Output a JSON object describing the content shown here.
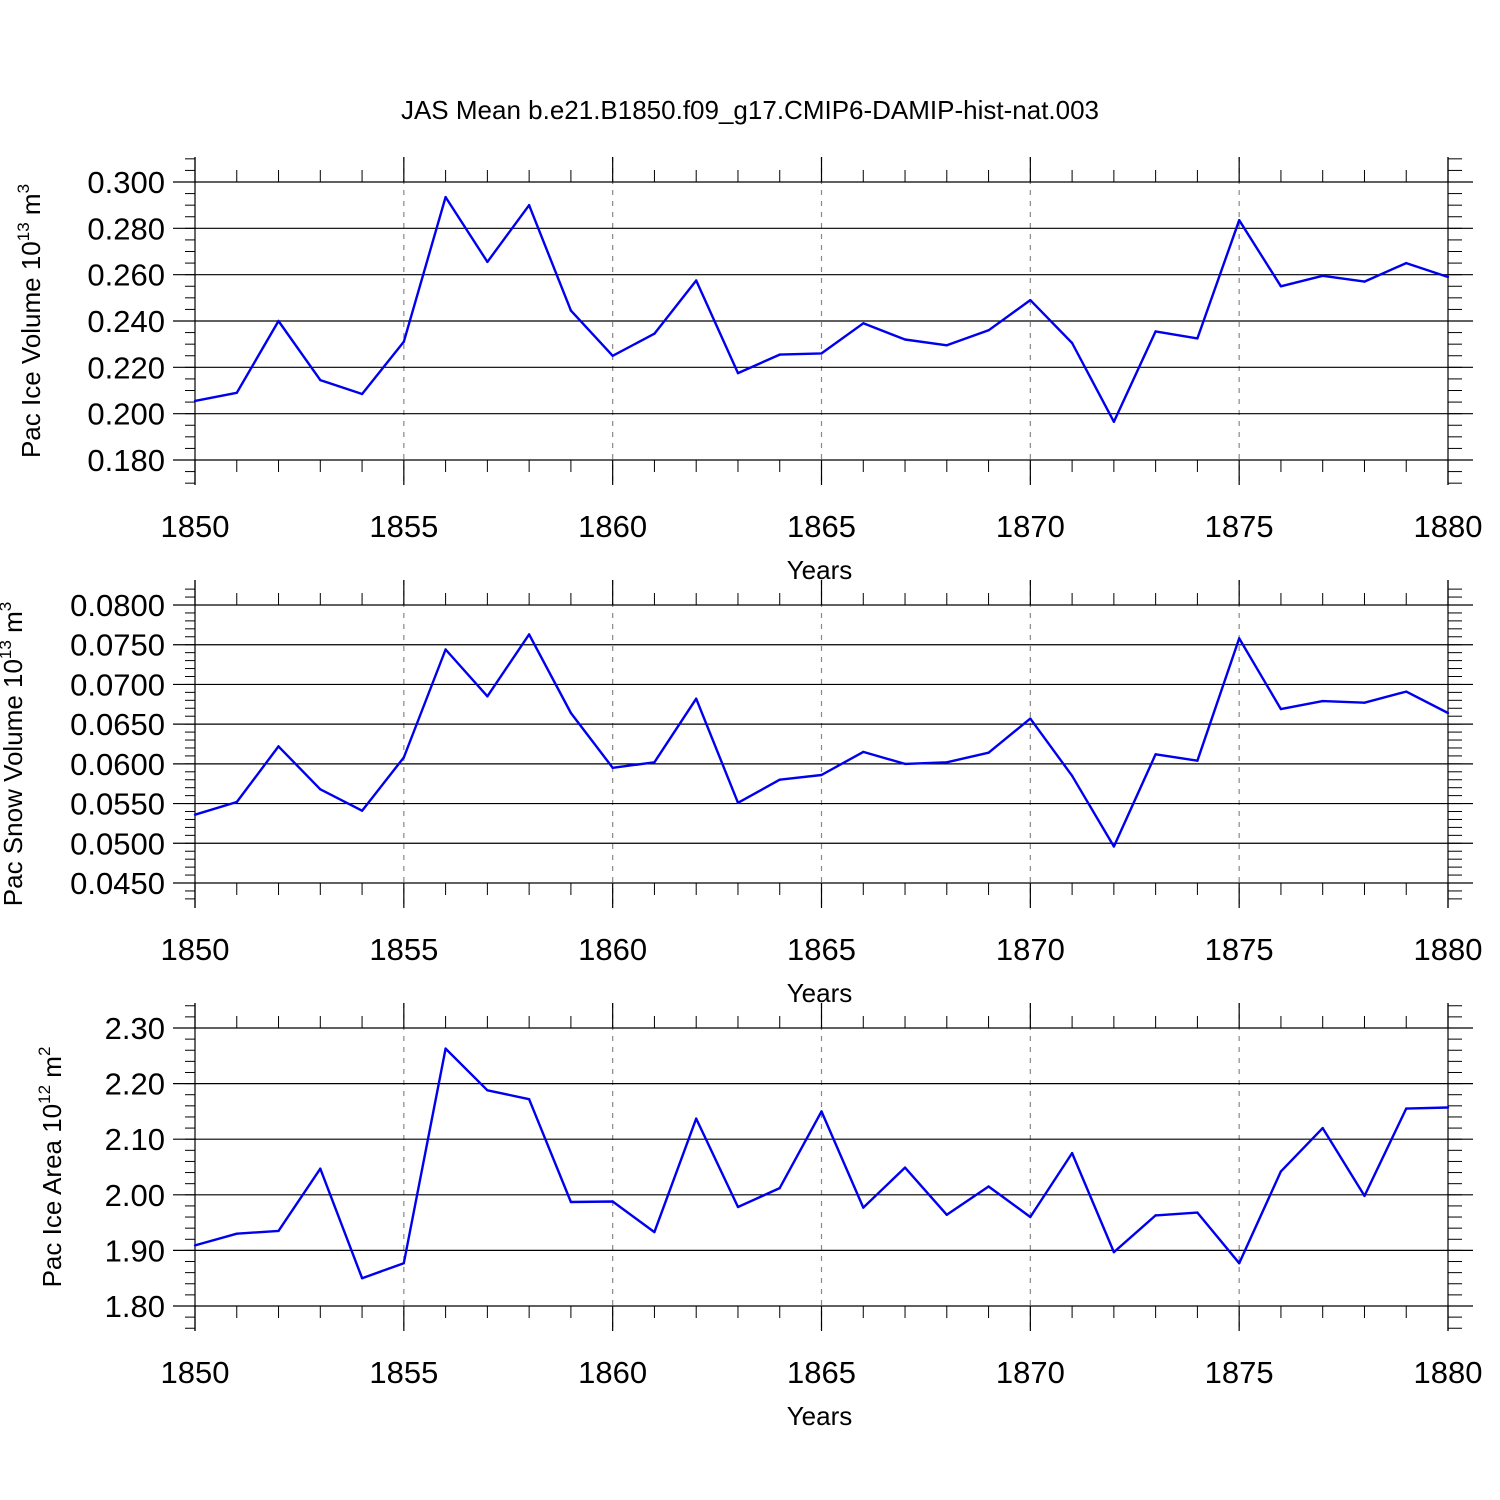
{
  "title": "JAS Mean b.e21.B1850.f09_g17.CMIP6-DAMIP-hist-nat.003",
  "colors": {
    "series": "#0000ee",
    "grid": "#888888",
    "axis": "#000000"
  },
  "chart_data": [
    {
      "type": "line",
      "ylabel": "Pac Ice Volume 10",
      "ylabel_exp": "13",
      "ylabel_unit": " m",
      "ylabel_unit_exp": "3",
      "xlabel": "Years",
      "xlim": [
        1850,
        1880
      ],
      "ylim": [
        0.175,
        0.305
      ],
      "yticks": [
        0.18,
        0.2,
        0.22,
        0.24,
        0.26,
        0.28,
        0.3
      ],
      "ytick_labels": [
        "0.180",
        "0.200",
        "0.220",
        "0.240",
        "0.260",
        "0.280",
        "0.300"
      ],
      "yminor_step": 0.005,
      "xticks": [
        1850,
        1855,
        1860,
        1865,
        1870,
        1875,
        1880
      ],
      "xtick_labels": [
        "1850",
        "1855",
        "1860",
        "1865",
        "1870",
        "1875",
        "1880"
      ],
      "grid_x": [
        1855,
        1860,
        1865,
        1870,
        1875
      ],
      "x": [
        1850,
        1851,
        1852,
        1853,
        1854,
        1855,
        1856,
        1857,
        1858,
        1859,
        1860,
        1861,
        1862,
        1863,
        1864,
        1865,
        1866,
        1867,
        1868,
        1869,
        1870,
        1871,
        1872,
        1873,
        1874,
        1875,
        1876,
        1877,
        1878,
        1879,
        1880
      ],
      "series": [
        {
          "name": "Pac Ice Volume",
          "values": [
            0.2055,
            0.209,
            0.24,
            0.2145,
            0.2085,
            0.231,
            0.2935,
            0.2655,
            0.29,
            0.2445,
            0.225,
            0.2345,
            0.2575,
            0.2175,
            0.2255,
            0.226,
            0.239,
            0.232,
            0.2295,
            0.236,
            0.249,
            0.2305,
            0.1965,
            0.2355,
            0.2325,
            0.2835,
            0.255,
            0.2595,
            0.257,
            0.265,
            0.259
          ]
        }
      ]
    },
    {
      "type": "line",
      "ylabel": "Pac Snow Volume 10",
      "ylabel_exp": "13",
      "ylabel_unit": " m",
      "ylabel_unit_exp": "3",
      "xlabel": "Years",
      "xlim": [
        1850,
        1880
      ],
      "ylim": [
        0.045,
        0.08
      ],
      "yticks": [
        0.045,
        0.05,
        0.055,
        0.06,
        0.065,
        0.07,
        0.075,
        0.08
      ],
      "ytick_labels": [
        "0.0450",
        "0.0500",
        "0.0550",
        "0.0600",
        "0.0650",
        "0.0700",
        "0.0750",
        "0.0800"
      ],
      "yminor_step": 0.001,
      "xticks": [
        1850,
        1855,
        1860,
        1865,
        1870,
        1875,
        1880
      ],
      "xtick_labels": [
        "1850",
        "1855",
        "1860",
        "1865",
        "1870",
        "1875",
        "1880"
      ],
      "grid_x": [
        1855,
        1860,
        1865,
        1870,
        1875
      ],
      "x": [
        1850,
        1851,
        1852,
        1853,
        1854,
        1855,
        1856,
        1857,
        1858,
        1859,
        1860,
        1861,
        1862,
        1863,
        1864,
        1865,
        1866,
        1867,
        1868,
        1869,
        1870,
        1871,
        1872,
        1873,
        1874,
        1875,
        1876,
        1877,
        1878,
        1879,
        1880
      ],
      "series": [
        {
          "name": "Pac Snow Volume",
          "values": [
            0.0536,
            0.0552,
            0.0622,
            0.0568,
            0.0541,
            0.0608,
            0.0744,
            0.0685,
            0.0763,
            0.0664,
            0.0595,
            0.0602,
            0.0682,
            0.0551,
            0.058,
            0.0586,
            0.0615,
            0.06,
            0.0602,
            0.0614,
            0.0657,
            0.0585,
            0.0496,
            0.0612,
            0.0604,
            0.0758,
            0.0669,
            0.0679,
            0.0677,
            0.0691,
            0.0664
          ]
        }
      ]
    },
    {
      "type": "line",
      "ylabel": "Pac Ice Area 10",
      "ylabel_exp": "12",
      "ylabel_unit": " m",
      "ylabel_unit_exp": "2",
      "xlabel": "Years",
      "xlim": [
        1850,
        1880
      ],
      "ylim": [
        1.8,
        2.3
      ],
      "yticks": [
        1.8,
        1.9,
        2.0,
        2.1,
        2.2,
        2.3
      ],
      "ytick_labels": [
        "1.80",
        "1.90",
        "2.00",
        "2.10",
        "2.20",
        "2.30"
      ],
      "yminor_step": 0.02,
      "xticks": [
        1850,
        1855,
        1860,
        1865,
        1870,
        1875,
        1880
      ],
      "xtick_labels": [
        "1850",
        "1855",
        "1860",
        "1865",
        "1870",
        "1875",
        "1880"
      ],
      "grid_x": [
        1855,
        1860,
        1865,
        1870,
        1875
      ],
      "x": [
        1850,
        1851,
        1852,
        1853,
        1854,
        1855,
        1856,
        1857,
        1858,
        1859,
        1860,
        1861,
        1862,
        1863,
        1864,
        1865,
        1866,
        1867,
        1868,
        1869,
        1870,
        1871,
        1872,
        1873,
        1874,
        1875,
        1876,
        1877,
        1878,
        1879,
        1880
      ],
      "series": [
        {
          "name": "Pac Ice Area",
          "values": [
            1.909,
            1.93,
            1.935,
            2.047,
            1.85,
            1.877,
            2.263,
            2.188,
            2.172,
            1.987,
            1.988,
            1.933,
            2.137,
            1.978,
            2.012,
            2.15,
            1.977,
            2.049,
            1.964,
            2.015,
            1.96,
            2.075,
            1.897,
            1.963,
            1.968,
            1.877,
            2.042,
            2.12,
            1.998,
            2.155,
            2.157
          ]
        }
      ]
    }
  ]
}
